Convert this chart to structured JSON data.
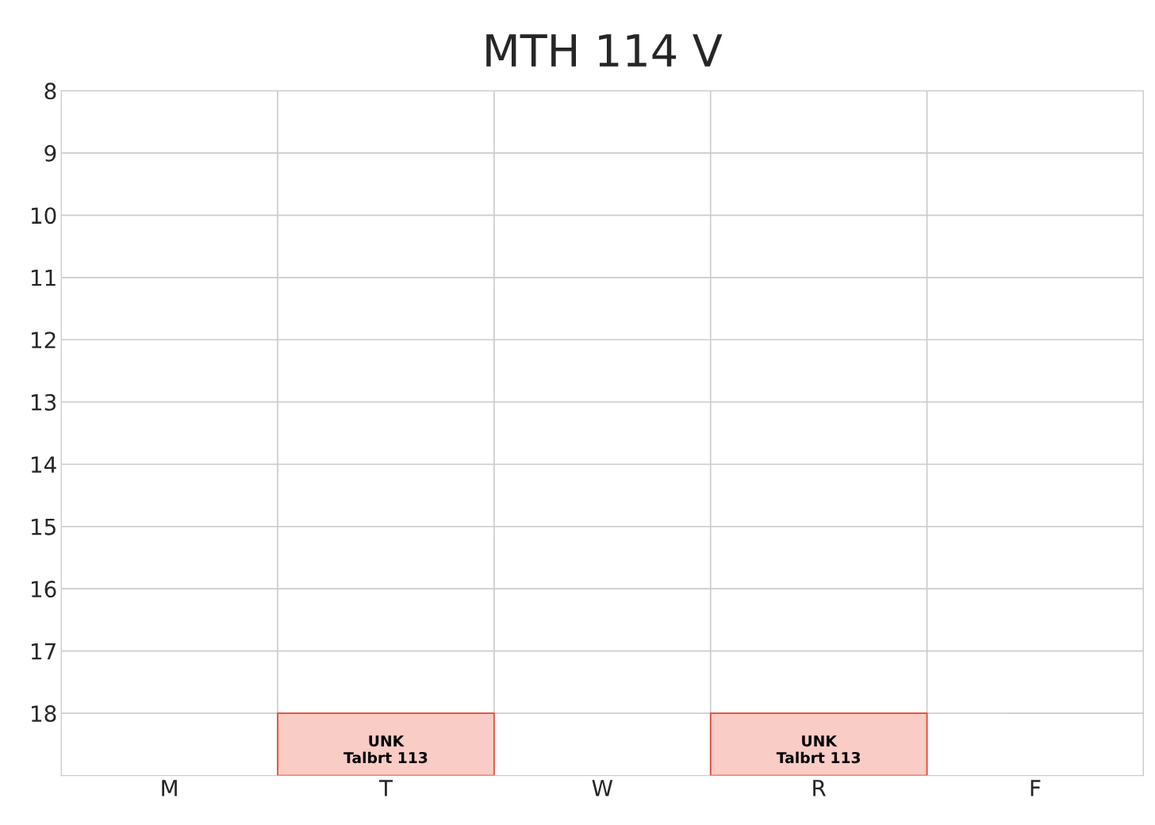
{
  "chart_data": {
    "type": "bar",
    "title": "MTH 114 V",
    "categories": [
      "M",
      "T",
      "W",
      "R",
      "F"
    ],
    "series": [
      {
        "color": "#e8472f",
        "values": [
          null,
          1,
          null,
          1,
          null
        ],
        "base": [
          null,
          18,
          null,
          18,
          null
        ],
        "value_labels": [
          null,
          "UNK\nTalbrt 113",
          null,
          "UNK\nTalbrt 113",
          null
        ]
      }
    ],
    "ylim": [
      19,
      8
    ],
    "yticks": [
      8,
      9,
      10,
      11,
      12,
      13,
      14,
      15,
      16,
      17,
      18
    ],
    "grid": true
  }
}
